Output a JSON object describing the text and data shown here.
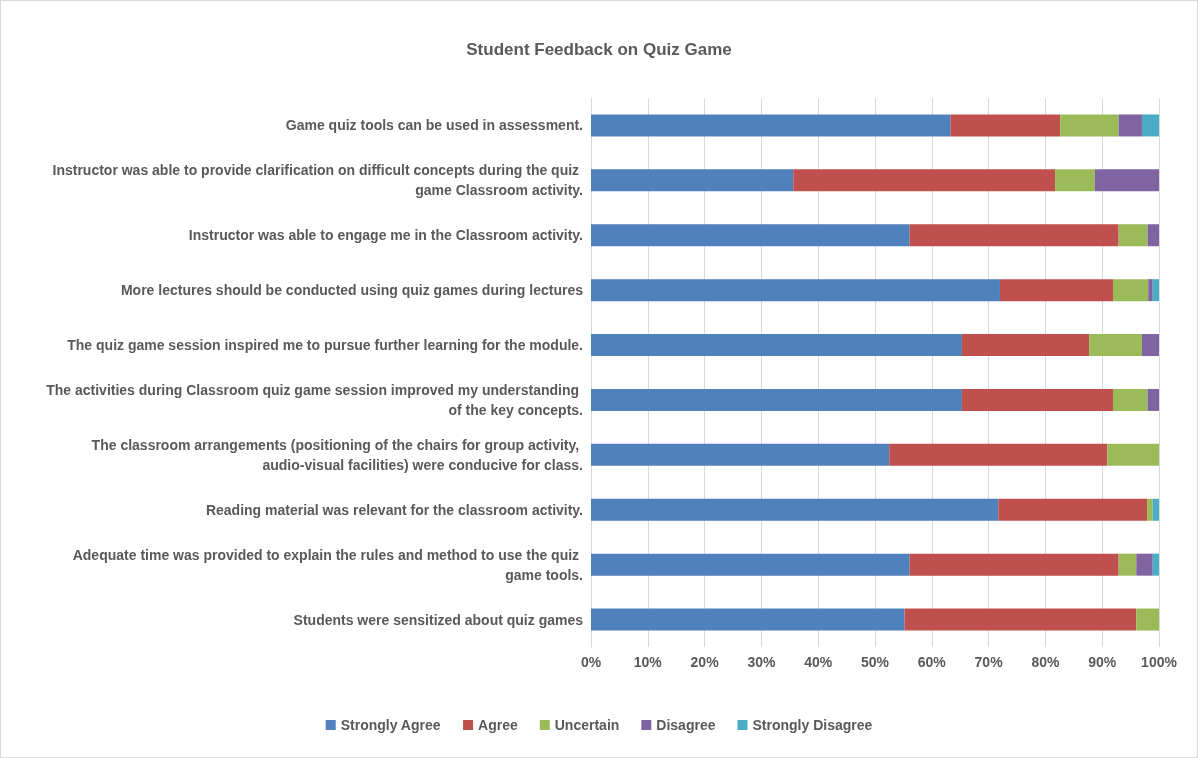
{
  "chart_data": {
    "type": "bar",
    "orientation": "horizontal",
    "stacked": true,
    "title": "Student Feedback on Quiz Game",
    "categories": [
      "Game quiz tools can be used in assessment.",
      "Instructor was able to provide clarification on difficult concepts during the quiz game Classroom activity.",
      "Instructor was able to engage me in the Classroom activity.",
      "More lectures should be conducted using quiz games during lectures",
      "The quiz game session inspired me to pursue further learning for the module.",
      "The activities during Classroom quiz game session improved my understanding of the key concepts.",
      "The classroom arrangements (positioning of the chairs for group activity, audio-visual facilities) were conducive for class.",
      "Reading material was relevant for the classroom activity.",
      "Adequate time was provided to explain the rules and method to use the quiz game tools.",
      "Students were sensitized about quiz games"
    ],
    "series": [
      {
        "name": "Strongly Agree",
        "color": "#4f81bd",
        "values": [
          63.3,
          35.6,
          56.1,
          72.0,
          65.3,
          65.3,
          52.5,
          71.7,
          56.1,
          55.2
        ]
      },
      {
        "name": "Agree",
        "color": "#c0504d",
        "values": [
          19.3,
          46.1,
          36.8,
          19.9,
          22.4,
          26.6,
          38.4,
          26.2,
          36.8,
          40.8
        ]
      },
      {
        "name": "Uncertain",
        "color": "#9bbb59",
        "values": [
          10.3,
          7.0,
          5.1,
          6.2,
          9.3,
          6.1,
          9.1,
          1.0,
          3.1,
          4.0
        ]
      },
      {
        "name": "Disagree",
        "color": "#8064a2",
        "values": [
          4.1,
          11.3,
          2.0,
          0.8,
          3.0,
          2.0,
          0,
          0,
          2.9,
          0
        ]
      },
      {
        "name": "Strongly Disagree",
        "color": "#4bacc6",
        "values": [
          3.0,
          0,
          0,
          1.1,
          0,
          0,
          0,
          1.1,
          1.1,
          0
        ]
      }
    ],
    "xlim": [
      0,
      100
    ],
    "xticks": [
      {
        "value": 0,
        "label": "0%"
      },
      {
        "value": 10,
        "label": "10%"
      },
      {
        "value": 20,
        "label": "20%"
      },
      {
        "value": 30,
        "label": "30%"
      },
      {
        "value": 40,
        "label": "40%"
      },
      {
        "value": 50,
        "label": "50%"
      },
      {
        "value": 60,
        "label": "60%"
      },
      {
        "value": 70,
        "label": "70%"
      },
      {
        "value": 80,
        "label": "80%"
      },
      {
        "value": 90,
        "label": "90%"
      },
      {
        "value": 100,
        "label": "100%"
      }
    ],
    "grid": "x",
    "legend": "bottom"
  }
}
